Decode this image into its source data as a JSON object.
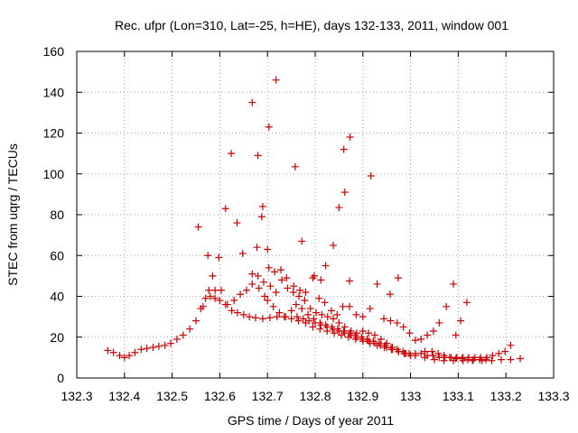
{
  "chart_data": {
    "type": "scatter",
    "title": "Rec. ufpr (Lon=310, Lat=-25, h=HE), days 132-133, 2011, window 001",
    "xlabel": "GPS time / Days of year 2011",
    "ylabel": "STEC from uqrg / TECUs",
    "xlim": [
      132.3,
      133.3
    ],
    "ylim": [
      0,
      160
    ],
    "xticks": [
      "132.3",
      "132.4",
      "132.5",
      "132.6",
      "132.7",
      "132.8",
      "132.9",
      "133",
      "133.1",
      "133.2",
      "133.3"
    ],
    "yticks": [
      "0",
      "20",
      "40",
      "60",
      "80",
      "100",
      "120",
      "140",
      "160"
    ],
    "grid": true,
    "marker": "+",
    "color": "#cc0000",
    "series": [
      {
        "points": [
          [
            132.365,
            13.5
          ],
          [
            132.377,
            12.5
          ],
          [
            132.39,
            11
          ],
          [
            132.4,
            10
          ],
          [
            132.41,
            11
          ],
          [
            132.422,
            12.5
          ],
          [
            132.435,
            14
          ],
          [
            132.447,
            14.5
          ],
          [
            132.46,
            15
          ],
          [
            132.472,
            15.5
          ],
          [
            132.485,
            16
          ],
          [
            132.497,
            17
          ],
          [
            132.51,
            19
          ],
          [
            132.523,
            21
          ],
          [
            132.537,
            24
          ],
          [
            132.55,
            28
          ],
          [
            132.56,
            34
          ],
          [
            132.57,
            39
          ],
          [
            132.58,
            40
          ],
          [
            132.59,
            39
          ],
          [
            132.6,
            38
          ],
          [
            132.612,
            36
          ],
          [
            132.625,
            33
          ],
          [
            132.637,
            32
          ],
          [
            132.65,
            31
          ],
          [
            132.662,
            30
          ],
          [
            132.675,
            29.5
          ],
          [
            132.69,
            29
          ],
          [
            132.705,
            29.5
          ],
          [
            132.72,
            30
          ],
          [
            132.735,
            30
          ],
          [
            132.75,
            29
          ],
          [
            132.765,
            28
          ],
          [
            132.78,
            27
          ],
          [
            132.795,
            25
          ],
          [
            132.81,
            24
          ],
          [
            132.825,
            23
          ],
          [
            132.84,
            22
          ],
          [
            132.855,
            21
          ],
          [
            132.87,
            20
          ],
          [
            132.885,
            19
          ],
          [
            132.9,
            18
          ],
          [
            132.915,
            17
          ],
          [
            132.93,
            16
          ],
          [
            132.945,
            15
          ],
          [
            132.96,
            14
          ],
          [
            132.975,
            13
          ],
          [
            132.99,
            12
          ],
          [
            133.01,
            11
          ],
          [
            133.03,
            10
          ],
          [
            133.05,
            9
          ],
          [
            133.07,
            8.5
          ],
          [
            133.09,
            8.5
          ],
          [
            133.11,
            8.5
          ],
          [
            133.13,
            8.5
          ],
          [
            133.15,
            8.5
          ],
          [
            133.17,
            8.5
          ],
          [
            133.19,
            9
          ],
          [
            133.21,
            9
          ],
          [
            133.23,
            9.5
          ],
          [
            132.555,
            74
          ],
          [
            132.575,
            60
          ],
          [
            132.585,
            50
          ],
          [
            132.598,
            59
          ],
          [
            132.612,
            83
          ],
          [
            132.624,
            110
          ],
          [
            132.636,
            76
          ],
          [
            132.648,
            61
          ],
          [
            132.668,
            135
          ],
          [
            132.68,
            109
          ],
          [
            132.69,
            84
          ],
          [
            132.688,
            79
          ],
          [
            132.7,
            63
          ],
          [
            132.703,
            123
          ],
          [
            132.718,
            146
          ],
          [
            132.678,
            64
          ],
          [
            132.758,
            103.5
          ],
          [
            132.772,
            67
          ],
          [
            132.798,
            50
          ],
          [
            132.812,
            48
          ],
          [
            132.822,
            55
          ],
          [
            132.838,
            65
          ],
          [
            132.85,
            83.5
          ],
          [
            132.86,
            112
          ],
          [
            132.862,
            91
          ],
          [
            132.873,
            118
          ],
          [
            132.917,
            99
          ],
          [
            132.93,
            46
          ],
          [
            132.957,
            41
          ],
          [
            132.974,
            49
          ],
          [
            132.668,
            51
          ],
          [
            132.68,
            50
          ],
          [
            132.692,
            47
          ],
          [
            132.703,
            54
          ],
          [
            132.715,
            52
          ],
          [
            132.728,
            53
          ],
          [
            132.74,
            49
          ],
          [
            132.755,
            45
          ],
          [
            132.768,
            43
          ],
          [
            132.78,
            42
          ],
          [
            132.795,
            49
          ],
          [
            132.808,
            39
          ],
          [
            132.82,
            37
          ],
          [
            132.834,
            33
          ],
          [
            132.846,
            31
          ],
          [
            132.858,
            35
          ],
          [
            132.872,
            35
          ],
          [
            132.872,
            47.5
          ],
          [
            132.886,
            31
          ],
          [
            132.9,
            30
          ],
          [
            132.915,
            34
          ],
          [
            132.944,
            29
          ],
          [
            132.958,
            28
          ],
          [
            132.972,
            27
          ],
          [
            132.985,
            25
          ],
          [
            132.998,
            22
          ],
          [
            133.01,
            18.5
          ],
          [
            133.022,
            19
          ],
          [
            133.035,
            21
          ],
          [
            133.048,
            23
          ],
          [
            133.06,
            27
          ],
          [
            133.075,
            35
          ],
          [
            133.09,
            46
          ],
          [
            133.095,
            21
          ],
          [
            133.105,
            28
          ],
          [
            133.118,
            37
          ],
          [
            132.565,
            35
          ],
          [
            132.577,
            43
          ],
          [
            132.59,
            43
          ],
          [
            132.603,
            43
          ],
          [
            132.616,
            36
          ],
          [
            132.63,
            38
          ],
          [
            132.643,
            41
          ],
          [
            132.656,
            43
          ],
          [
            132.668,
            46
          ],
          [
            132.682,
            44
          ],
          [
            132.694,
            40
          ],
          [
            132.706,
            45
          ],
          [
            132.718,
            42
          ],
          [
            132.73,
            48
          ],
          [
            132.742,
            44
          ],
          [
            132.754,
            42
          ],
          [
            132.766,
            40
          ],
          [
            132.778,
            38
          ],
          [
            132.79,
            34
          ],
          [
            132.802,
            32
          ],
          [
            132.814,
            31
          ],
          [
            132.826,
            30
          ],
          [
            132.838,
            29
          ],
          [
            132.85,
            27
          ],
          [
            132.862,
            25
          ],
          [
            132.875,
            23
          ],
          [
            132.887,
            22
          ],
          [
            132.9,
            23
          ],
          [
            132.912,
            22
          ],
          [
            132.925,
            21
          ],
          [
            132.938,
            19
          ],
          [
            132.95,
            17
          ],
          [
            132.962,
            15
          ],
          [
            132.975,
            13
          ],
          [
            132.987,
            12
          ],
          [
            133.0,
            11
          ],
          [
            132.7,
            38
          ],
          [
            132.712,
            35
          ],
          [
            132.725,
            32
          ],
          [
            132.738,
            30
          ],
          [
            132.75,
            33
          ],
          [
            132.762,
            30
          ],
          [
            132.775,
            29
          ],
          [
            132.787,
            28
          ],
          [
            132.8,
            27
          ],
          [
            132.812,
            26
          ],
          [
            132.825,
            25
          ],
          [
            132.837,
            24
          ],
          [
            132.85,
            23
          ],
          [
            132.862,
            22
          ],
          [
            132.875,
            21
          ],
          [
            132.887,
            20
          ],
          [
            132.9,
            19
          ],
          [
            132.912,
            18
          ],
          [
            132.925,
            17
          ],
          [
            132.937,
            16
          ],
          [
            132.95,
            15
          ],
          [
            132.962,
            14
          ],
          [
            132.975,
            13
          ],
          [
            132.987,
            12
          ],
          [
            132.76,
            36
          ],
          [
            132.772,
            34
          ],
          [
            132.785,
            31
          ],
          [
            132.797,
            29
          ],
          [
            132.81,
            27
          ],
          [
            132.822,
            26
          ],
          [
            132.835,
            25
          ],
          [
            132.847,
            24
          ],
          [
            132.86,
            23
          ],
          [
            132.872,
            22
          ],
          [
            132.884,
            21
          ],
          [
            132.897,
            20
          ],
          [
            132.909,
            19
          ],
          [
            132.922,
            18
          ],
          [
            132.934,
            17
          ],
          [
            132.947,
            16
          ],
          [
            132.959,
            15
          ],
          [
            132.972,
            14
          ],
          [
            132.984,
            13
          ],
          [
            132.997,
            12
          ],
          [
            133.01,
            12
          ],
          [
            133.022,
            12
          ],
          [
            133.035,
            11
          ],
          [
            133.047,
            11
          ],
          [
            133.06,
            10
          ],
          [
            133.072,
            10
          ],
          [
            133.085,
            10
          ],
          [
            133.097,
            10
          ],
          [
            133.11,
            10
          ],
          [
            133.122,
            10
          ],
          [
            133.135,
            10
          ],
          [
            133.147,
            10
          ],
          [
            133.16,
            10
          ],
          [
            133.172,
            11
          ],
          [
            133.185,
            12
          ],
          [
            133.198,
            13
          ],
          [
            133.21,
            16
          ],
          [
            133.03,
            13
          ],
          [
            133.045,
            13
          ],
          [
            133.058,
            12
          ],
          [
            133.07,
            11
          ],
          [
            133.082,
            10
          ],
          [
            133.095,
            9.5
          ],
          [
            133.108,
            9.5
          ],
          [
            133.12,
            9
          ],
          [
            133.132,
            9
          ],
          [
            133.145,
            9
          ],
          [
            133.158,
            9
          ]
        ]
      }
    ]
  }
}
